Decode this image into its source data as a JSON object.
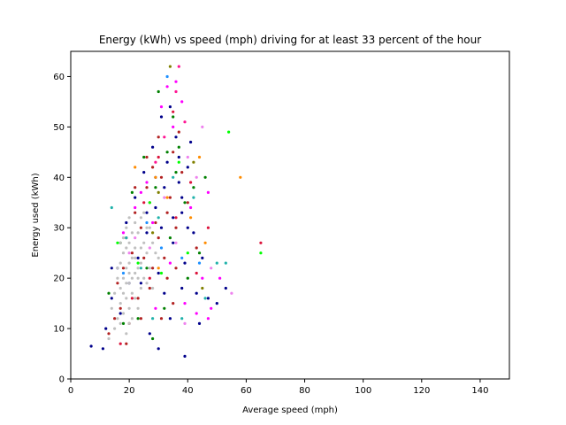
{
  "chart_data": {
    "type": "scatter",
    "title": "Energy (kWh) vs speed (mph) driving for at least 33 percent of the hour",
    "xlabel": "Average speed (mph)",
    "ylabel": "Energy used (kWh)",
    "xlim": [
      0,
      150
    ],
    "ylim": [
      0,
      65
    ],
    "xticks": [
      0,
      20,
      40,
      60,
      80,
      100,
      120,
      140
    ],
    "yticks": [
      0,
      10,
      20,
      30,
      40,
      50,
      60
    ],
    "grid": false,
    "legend": "none",
    "colors": [
      "#c0c0c0",
      "#b22222",
      "#00008b",
      "#008000",
      "#ff00ff",
      "#ff8c00",
      "#20b2aa",
      "#00ff00",
      "#ee82ee",
      "#dc143c",
      "#1e90ff",
      "#808000",
      "#ff1493"
    ],
    "series": [
      {
        "points": [
          [
            17,
            18
          ],
          [
            18,
            20
          ],
          [
            19,
            22
          ],
          [
            20,
            19
          ],
          [
            21,
            24
          ],
          [
            22,
            21
          ],
          [
            19,
            16
          ],
          [
            18,
            13
          ],
          [
            20,
            27
          ],
          [
            22,
            26
          ],
          [
            24,
            23
          ],
          [
            21,
            17
          ],
          [
            17,
            15
          ],
          [
            16,
            12
          ],
          [
            23,
            29
          ],
          [
            25,
            27
          ],
          [
            19,
            30
          ],
          [
            15,
            17
          ],
          [
            14,
            14
          ],
          [
            20,
            14
          ],
          [
            26,
            25
          ],
          [
            24,
            18
          ],
          [
            22,
            31
          ],
          [
            18,
            25
          ],
          [
            16,
            20
          ],
          [
            21,
            12
          ],
          [
            23,
            20
          ],
          [
            27,
            22
          ],
          [
            20,
            32
          ],
          [
            19,
            9
          ],
          [
            17,
            11
          ],
          [
            25,
            20
          ],
          [
            28,
            27
          ],
          [
            22,
            16
          ],
          [
            18,
            28
          ],
          [
            15,
            10
          ],
          [
            24,
            32
          ],
          [
            26,
            19
          ],
          [
            21,
            29
          ],
          [
            20,
            11
          ],
          [
            23,
            14
          ],
          [
            16,
            22
          ],
          [
            19,
            26
          ],
          [
            27,
            30
          ],
          [
            29,
            25
          ],
          [
            17,
            23
          ],
          [
            22,
            24
          ],
          [
            18,
            17
          ],
          [
            20,
            21
          ],
          [
            25,
            33
          ],
          [
            13,
            8
          ],
          [
            30,
            24
          ],
          [
            28,
            18
          ],
          [
            24,
            26
          ],
          [
            21,
            20
          ],
          [
            19,
            19
          ],
          [
            23,
            22
          ],
          [
            17,
            27
          ],
          [
            26,
            30
          ],
          [
            20,
            23
          ]
        ]
      },
      {
        "points": [
          [
            15,
            12
          ],
          [
            18,
            22
          ],
          [
            21,
            25
          ],
          [
            24,
            30
          ],
          [
            27,
            35
          ],
          [
            30,
            28
          ],
          [
            33,
            33
          ],
          [
            28,
            42
          ],
          [
            26,
            38
          ],
          [
            22,
            33
          ],
          [
            19,
            28
          ],
          [
            16,
            19
          ],
          [
            13,
            9
          ],
          [
            31,
            40
          ],
          [
            35,
            45
          ],
          [
            29,
            31
          ],
          [
            23,
            16
          ],
          [
            20,
            11
          ],
          [
            25,
            24
          ],
          [
            34,
            36
          ],
          [
            32,
            24
          ],
          [
            36,
            30
          ],
          [
            17,
            14
          ],
          [
            38,
            41
          ],
          [
            37,
            49
          ],
          [
            30,
            48
          ],
          [
            27,
            18
          ],
          [
            24,
            12
          ],
          [
            22,
            38
          ],
          [
            33,
            20
          ],
          [
            26,
            44
          ],
          [
            19,
            7
          ],
          [
            40,
            35
          ],
          [
            43,
            26
          ],
          [
            35,
            15
          ],
          [
            31,
            12
          ],
          [
            28,
            22
          ],
          [
            36,
            22
          ]
        ]
      },
      {
        "points": [
          [
            12,
            10
          ],
          [
            14,
            16
          ],
          [
            16,
            22
          ],
          [
            19,
            31
          ],
          [
            22,
            36
          ],
          [
            25,
            41
          ],
          [
            28,
            46
          ],
          [
            31,
            52
          ],
          [
            34,
            54
          ],
          [
            37,
            44
          ],
          [
            40,
            42
          ],
          [
            32,
            38
          ],
          [
            29,
            34
          ],
          [
            26,
            29
          ],
          [
            23,
            24
          ],
          [
            20,
            19
          ],
          [
            17,
            13
          ],
          [
            30,
            21
          ],
          [
            35,
            27
          ],
          [
            38,
            33
          ],
          [
            42,
            29
          ],
          [
            45,
            24
          ],
          [
            38,
            18
          ],
          [
            34,
            12
          ],
          [
            30,
            6
          ],
          [
            27,
            9
          ],
          [
            33,
            43
          ],
          [
            36,
            48
          ],
          [
            41,
            47
          ],
          [
            39,
            23
          ],
          [
            43,
            17
          ],
          [
            47,
            16
          ],
          [
            50,
            15
          ],
          [
            44,
            11
          ],
          [
            29,
            40
          ],
          [
            24,
            19
          ],
          [
            38,
            36
          ],
          [
            32,
            17
          ],
          [
            35,
            32
          ],
          [
            26,
            33
          ],
          [
            37,
            39
          ],
          [
            14,
            22
          ],
          [
            11,
            6
          ],
          [
            7,
            6.5
          ],
          [
            39,
            4.5
          ],
          [
            53,
            18
          ],
          [
            40,
            30
          ],
          [
            31,
            30
          ]
        ]
      },
      {
        "points": [
          [
            13,
            17
          ],
          [
            17,
            27
          ],
          [
            21,
            37
          ],
          [
            25,
            44
          ],
          [
            29,
            38
          ],
          [
            33,
            45
          ],
          [
            37,
            46
          ],
          [
            36,
            41
          ],
          [
            39,
            35
          ],
          [
            34,
            28
          ],
          [
            32,
            14
          ],
          [
            28,
            8
          ],
          [
            23,
            12
          ],
          [
            42,
            38
          ],
          [
            30,
            57
          ],
          [
            35,
            52
          ],
          [
            44,
            25
          ],
          [
            46,
            40
          ],
          [
            18,
            11
          ],
          [
            26,
            22
          ],
          [
            40,
            20
          ]
        ]
      },
      {
        "points": [
          [
            18,
            29
          ],
          [
            22,
            34
          ],
          [
            26,
            39
          ],
          [
            31,
            54
          ],
          [
            36,
            59
          ],
          [
            33,
            58
          ],
          [
            38,
            55
          ],
          [
            35,
            50
          ],
          [
            28,
            31
          ],
          [
            34,
            23
          ],
          [
            43,
            13
          ],
          [
            45,
            20
          ],
          [
            48,
            14
          ],
          [
            41,
            34
          ],
          [
            29,
            14
          ],
          [
            39,
            15
          ],
          [
            24,
            37
          ],
          [
            47,
            37
          ],
          [
            51,
            20
          ],
          [
            47,
            12
          ]
        ]
      },
      {
        "points": [
          [
            22,
            42
          ],
          [
            29,
            40
          ],
          [
            33,
            36
          ],
          [
            41,
            32
          ],
          [
            46,
            27
          ],
          [
            58,
            40
          ],
          [
            44,
            44
          ],
          [
            30,
            22
          ]
        ]
      },
      {
        "points": [
          [
            14,
            34
          ],
          [
            19,
            28
          ],
          [
            24,
            22
          ],
          [
            30,
            32
          ],
          [
            35,
            40
          ],
          [
            42,
            36
          ],
          [
            46,
            16
          ],
          [
            50,
            23
          ],
          [
            38,
            12
          ],
          [
            28,
            12
          ],
          [
            53,
            23
          ]
        ]
      },
      {
        "points": [
          [
            16,
            27
          ],
          [
            23,
            23
          ],
          [
            31,
            21
          ],
          [
            37,
            43
          ],
          [
            40,
            25
          ],
          [
            65,
            25
          ],
          [
            54,
            49
          ],
          [
            27,
            35
          ]
        ]
      },
      {
        "points": [
          [
            20,
            25
          ],
          [
            27,
            26
          ],
          [
            32,
            36
          ],
          [
            40,
            44
          ],
          [
            45,
            50
          ],
          [
            48,
            22
          ],
          [
            43,
            40
          ],
          [
            39,
            11
          ],
          [
            55,
            17
          ],
          [
            36,
            27
          ],
          [
            22,
            28
          ]
        ]
      },
      {
        "points": [
          [
            65,
            27
          ],
          [
            17,
            7
          ],
          [
            21,
            16
          ],
          [
            25,
            35
          ],
          [
            30,
            44
          ],
          [
            35,
            53
          ],
          [
            41,
            39
          ],
          [
            47,
            30
          ],
          [
            43,
            21
          ],
          [
            36,
            32
          ],
          [
            27,
            20
          ]
        ]
      },
      {
        "points": [
          [
            33,
            60
          ],
          [
            18,
            21
          ],
          [
            26,
            31
          ],
          [
            44,
            23
          ],
          [
            31,
            26
          ],
          [
            38,
            24
          ]
        ]
      },
      {
        "points": [
          [
            34,
            62
          ],
          [
            30,
            37
          ],
          [
            42,
            43
          ],
          [
            45,
            18
          ],
          [
            28,
            29
          ]
        ]
      },
      {
        "points": [
          [
            37,
            62
          ],
          [
            36,
            57
          ],
          [
            32,
            48
          ],
          [
            39,
            51
          ],
          [
            29,
            43
          ]
        ]
      }
    ]
  }
}
